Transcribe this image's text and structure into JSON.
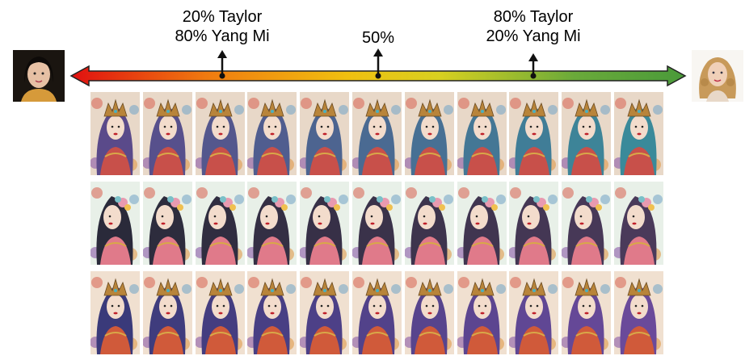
{
  "labels": {
    "left": [
      "20% Taylor",
      "80% Yang Mi"
    ],
    "center": "50%",
    "right": [
      "80% Taylor",
      "20% Yang Mi"
    ]
  },
  "gradient_colors": [
    "#e01010",
    "#f07a10",
    "#f0c010",
    "#d8d020",
    "#6aaa3a",
    "#4a9a3a"
  ],
  "endpoints": {
    "left": "portrait-dark-hair-photo",
    "right": "portrait-blonde-curly-hair-photo"
  },
  "grid": {
    "rows": 3,
    "columns": 11,
    "row_themes": [
      {
        "name": "teal-hair-headdress-portrait",
        "hair": [
          "#5a4a8a",
          "#3a8a9a"
        ],
        "bg": "#e8d8c8",
        "accent": "#c8504a"
      },
      {
        "name": "profile-floral-portrait",
        "hair": [
          "#2a2a3a",
          "#4a3a5a"
        ],
        "bg": "#e8f0e8",
        "accent": "#e07a8a"
      },
      {
        "name": "headdress-purple-hair-portrait",
        "hair": [
          "#3a3a7a",
          "#6a4a9a"
        ],
        "bg": "#f0e0d0",
        "accent": "#d05a3a"
      }
    ]
  }
}
